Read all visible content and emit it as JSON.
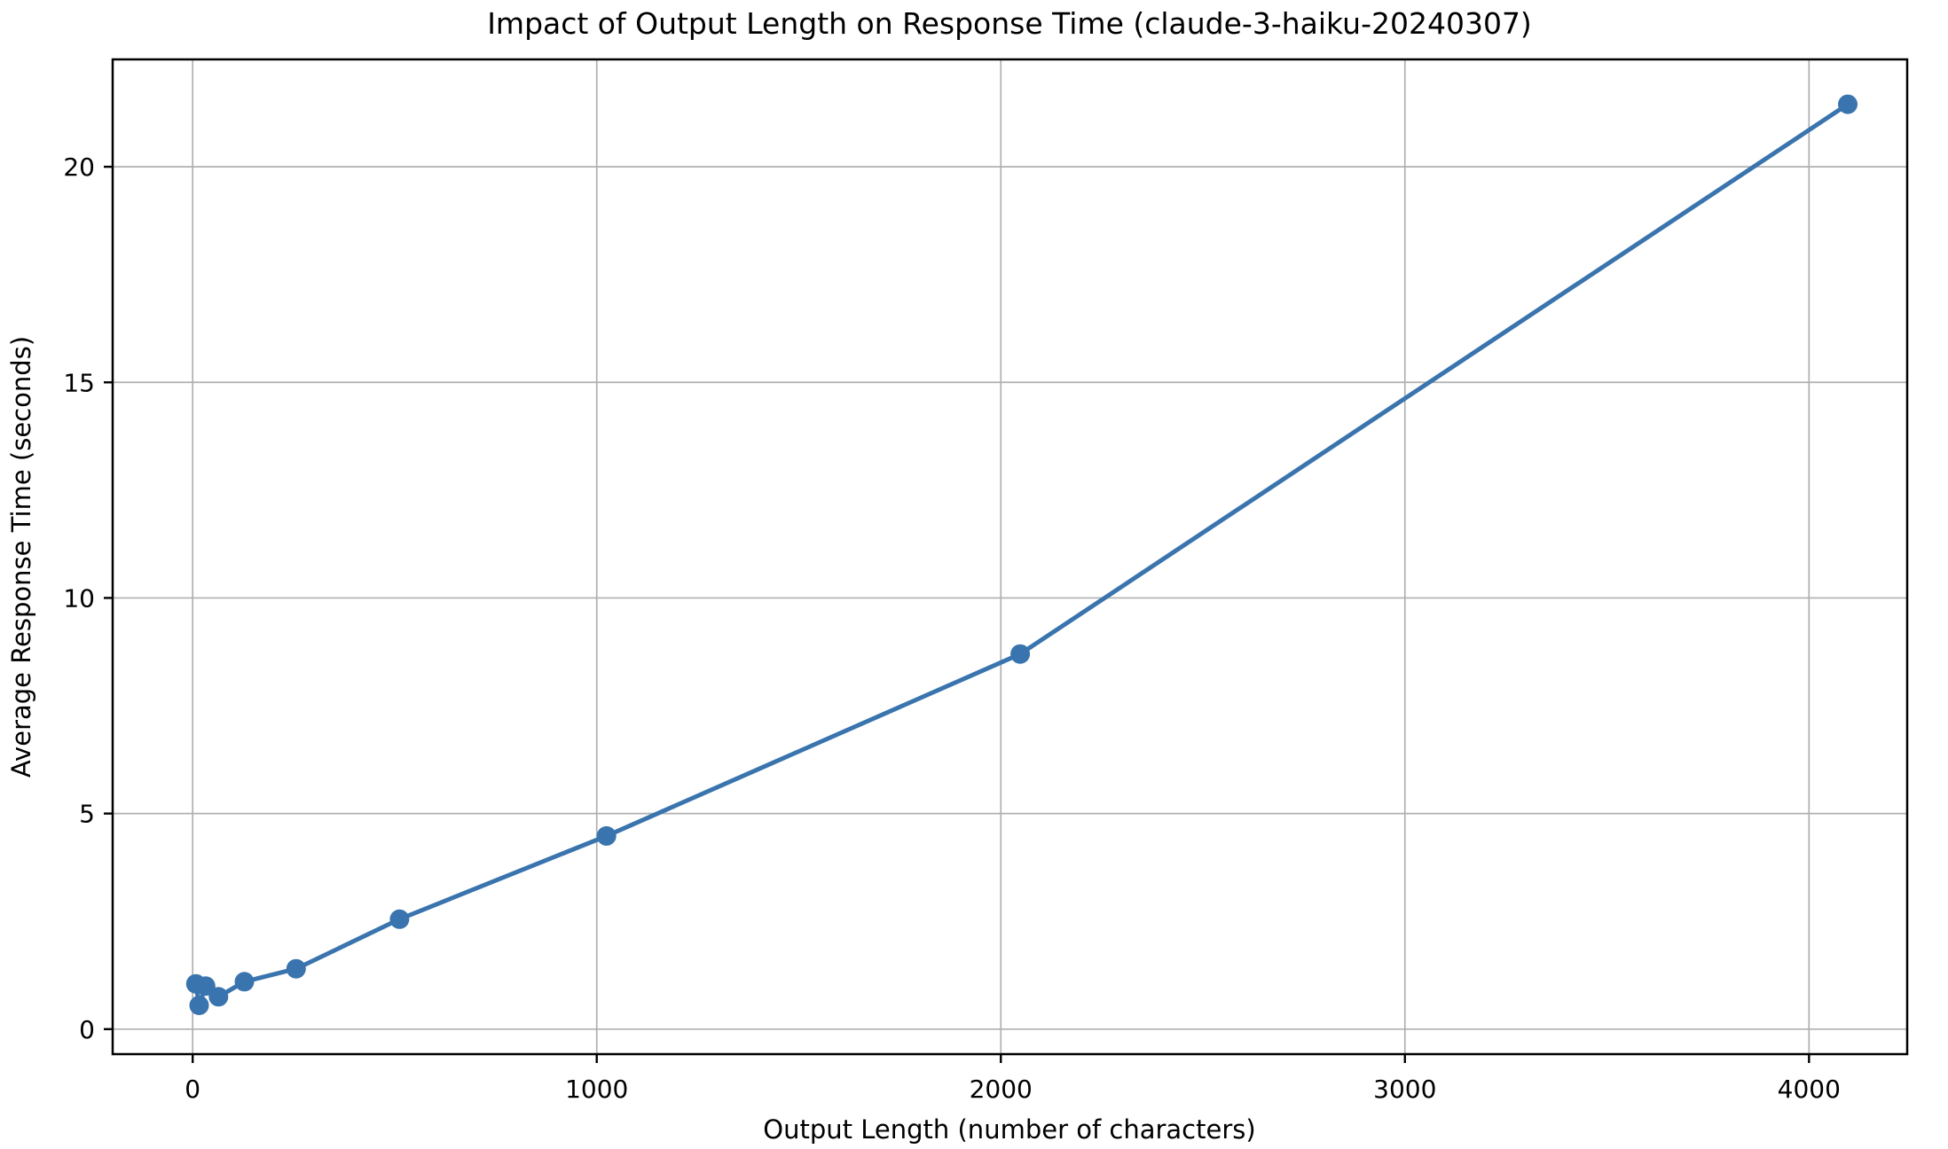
{
  "chart_data": {
    "type": "line",
    "title": "Impact of Output Length on Response Time (claude-3-haiku-20240307)",
    "xlabel": "Output Length (number of characters)",
    "ylabel": "Average Response Time (seconds)",
    "x": [
      8,
      16,
      32,
      64,
      128,
      256,
      512,
      1024,
      2048,
      4096
    ],
    "y": [
      1.05,
      0.55,
      1.0,
      0.75,
      1.1,
      1.4,
      2.55,
      4.48,
      8.7,
      21.45
    ],
    "series_name": "average response time",
    "xticks": [
      0,
      1000,
      2000,
      3000,
      4000
    ],
    "yticks": [
      0,
      5,
      10,
      15,
      20
    ],
    "xlim": [
      -198,
      4243
    ],
    "ylim": [
      -0.58,
      22.49
    ],
    "grid": true,
    "legend_position": "none",
    "line_color": "#3a74ae",
    "marker_color": "#3a74ae",
    "marker_shape": "circle",
    "grid_color": "#b0b0b0",
    "spine_color": "#000000",
    "text_color": "#000000",
    "background_color": "#ffffff"
  }
}
